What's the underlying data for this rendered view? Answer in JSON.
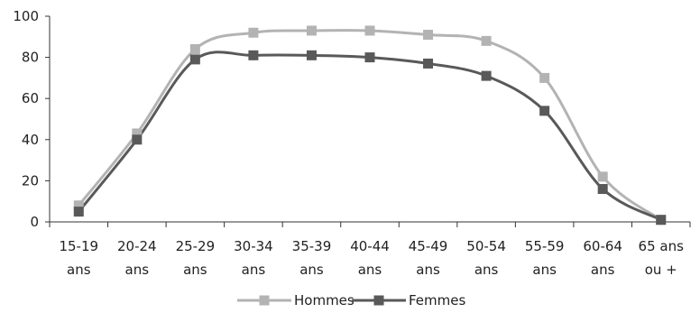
{
  "chart_data": {
    "type": "line",
    "categories": [
      [
        "15-19",
        "ans"
      ],
      [
        "20-24",
        "ans"
      ],
      [
        "25-29",
        "ans"
      ],
      [
        "30-34",
        "ans"
      ],
      [
        "35-39",
        "ans"
      ],
      [
        "40-44",
        "ans"
      ],
      [
        "45-49",
        "ans"
      ],
      [
        "50-54",
        "ans"
      ],
      [
        "55-59",
        "ans"
      ],
      [
        "60-64",
        "ans"
      ],
      [
        "65 ans",
        "ou +"
      ]
    ],
    "series": [
      {
        "name": "Hommes",
        "color": "#b3b3b3",
        "values": [
          8,
          43,
          84,
          92,
          93,
          93,
          91,
          88,
          70,
          22,
          1
        ]
      },
      {
        "name": "Femmes",
        "color": "#595959",
        "values": [
          5,
          40,
          79,
          81,
          81,
          80,
          77,
          71,
          54,
          16,
          1
        ]
      }
    ],
    "ylim": [
      0,
      100
    ],
    "yticks": [
      0,
      20,
      40,
      60,
      80,
      100
    ],
    "grid": false,
    "legend": "bottom"
  }
}
